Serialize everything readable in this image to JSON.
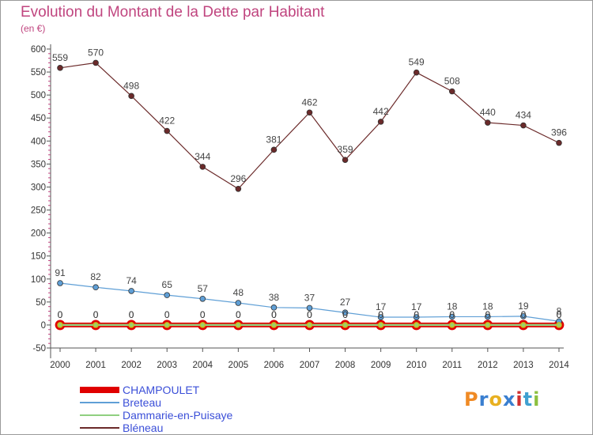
{
  "chart_data": {
    "type": "line",
    "title": "Evolution du Montant de la Dette par Habitant",
    "subtitle": "(en €)",
    "categories": [
      "2000",
      "2001",
      "2002",
      "2003",
      "2004",
      "2005",
      "2006",
      "2007",
      "2008",
      "2009",
      "2010",
      "2011",
      "2012",
      "2013",
      "2014"
    ],
    "ylim": [
      -50,
      600
    ],
    "yticks": [
      -50,
      0,
      50,
      100,
      150,
      200,
      250,
      300,
      350,
      400,
      450,
      500,
      550,
      600
    ],
    "grid": false,
    "legend_position": "bottom-left",
    "series": [
      {
        "name": "CHAMPOULET",
        "color": "#e00000",
        "values": [
          0,
          0,
          0,
          0,
          0,
          0,
          0,
          0,
          0,
          0,
          0,
          0,
          0,
          0,
          0
        ]
      },
      {
        "name": "Breteau",
        "color": "#5f9fd6",
        "values": [
          91,
          82,
          74,
          65,
          57,
          48,
          38,
          37,
          27,
          17,
          17,
          18,
          18,
          19,
          8
        ]
      },
      {
        "name": "Dammarie-en-Puisaye",
        "color": "#90d080",
        "values": [
          0,
          0,
          0,
          0,
          0,
          0,
          0,
          0,
          0,
          0,
          0,
          0,
          0,
          0,
          0
        ]
      },
      {
        "name": "Bléneau",
        "color": "#6b2a2a",
        "values": [
          559,
          570,
          498,
          422,
          344,
          296,
          381,
          462,
          359,
          442,
          549,
          508,
          440,
          434,
          396
        ]
      }
    ]
  },
  "logo": {
    "text": "Proxiti",
    "colors": [
      "#f08a24",
      "#3a7fd0",
      "#e8b020",
      "#3a7fd0",
      "#d03030",
      "#40a0d0",
      "#8cc040"
    ]
  }
}
